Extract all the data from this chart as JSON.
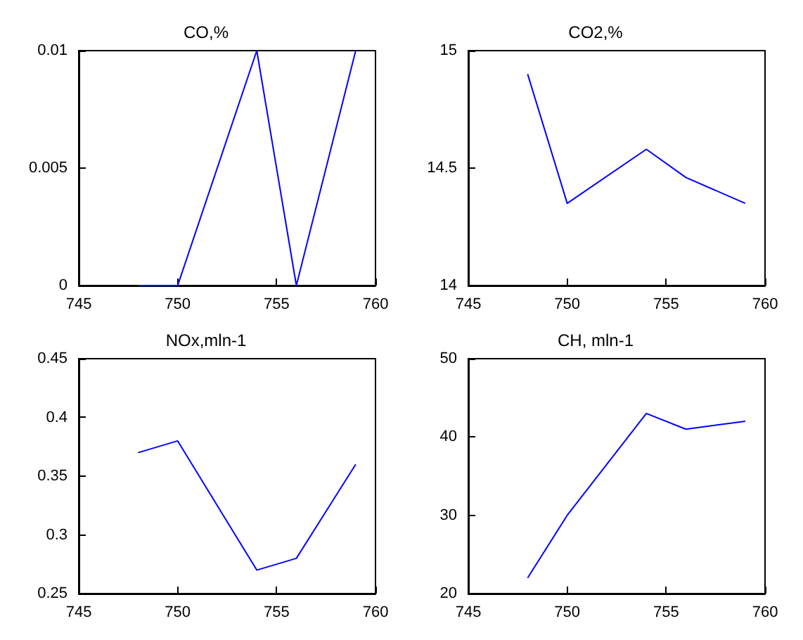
{
  "chart_data": [
    {
      "type": "line",
      "title": "CO,%",
      "x": [
        748,
        750,
        754,
        756,
        759
      ],
      "values": [
        0,
        0,
        0.01,
        0,
        0.01
      ],
      "color": "#0000ff",
      "xlim": [
        745,
        760
      ],
      "xticks": [
        745,
        750,
        755,
        760
      ],
      "ylim": [
        0,
        0.01
      ],
      "yticks": [
        0,
        0.005,
        0.01
      ]
    },
    {
      "type": "line",
      "title": "CO2,%",
      "x": [
        748,
        750,
        754,
        756,
        759
      ],
      "values": [
        14.9,
        14.35,
        14.58,
        14.46,
        14.35
      ],
      "color": "#0000ff",
      "xlim": [
        745,
        760
      ],
      "xticks": [
        745,
        750,
        755,
        760
      ],
      "ylim": [
        14,
        15
      ],
      "yticks": [
        14,
        14.5,
        15
      ]
    },
    {
      "type": "line",
      "title": "NOx,mln-1",
      "x": [
        748,
        750,
        754,
        756,
        759
      ],
      "values": [
        0.37,
        0.38,
        0.27,
        0.28,
        0.36
      ],
      "color": "#0000ff",
      "xlim": [
        745,
        760
      ],
      "xticks": [
        745,
        750,
        755,
        760
      ],
      "ylim": [
        0.25,
        0.45
      ],
      "yticks": [
        0.25,
        0.3,
        0.35,
        0.4,
        0.45
      ]
    },
    {
      "type": "line",
      "title": "CH, mln-1",
      "x": [
        748,
        750,
        754,
        756,
        759
      ],
      "values": [
        22,
        30,
        43,
        41,
        42
      ],
      "color": "#0000ff",
      "xlim": [
        745,
        760
      ],
      "xticks": [
        745,
        750,
        755,
        760
      ],
      "ylim": [
        20,
        50
      ],
      "yticks": [
        20,
        30,
        40,
        50
      ]
    }
  ]
}
